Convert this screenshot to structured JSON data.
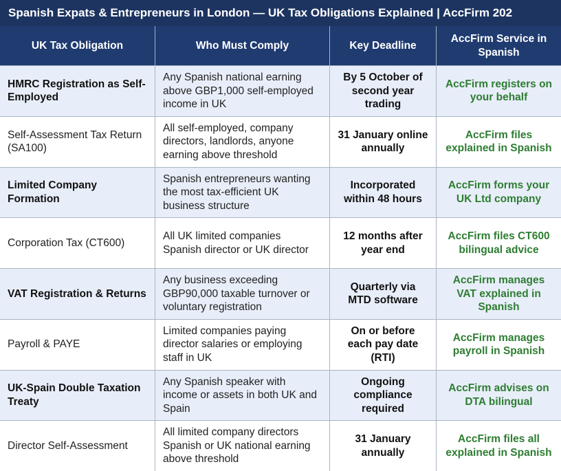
{
  "table": {
    "title": "Spanish Expats & Entrepreneurs in London — UK Tax Obligations Explained | AccFirm 202",
    "headers": [
      "UK Tax Obligation",
      "Who Must Comply",
      "Key Deadline",
      "AccFirm Service in Spanish"
    ],
    "rows": [
      [
        "HMRC Registration as Self-Employed",
        "Any Spanish national earning above GBP1,000 self-employed income in UK",
        "By 5 October of second year trading",
        "AccFirm registers on your behalf"
      ],
      [
        "Self-Assessment Tax Return (SA100)",
        "All self-employed, company directors, landlords, anyone earning above threshold",
        "31 January online annually",
        "AccFirm files explained in Spanish"
      ],
      [
        "Limited Company Formation",
        "Spanish entrepreneurs wanting the most tax-efficient UK business structure",
        "Incorporated within 48 hours",
        "AccFirm forms your UK Ltd company"
      ],
      [
        "Corporation Tax (CT600)",
        "All UK limited companies Spanish director or UK director",
        "12 months after year end",
        "AccFirm files CT600 bilingual advice"
      ],
      [
        "VAT Registration & Returns",
        "Any business exceeding GBP90,000 taxable turnover or voluntary registration",
        "Quarterly via MTD software",
        "AccFirm manages VAT explained in Spanish"
      ],
      [
        "Payroll & PAYE",
        "Limited companies paying director salaries or employing staff in UK",
        "On or before each pay date (RTI)",
        "AccFirm manages payroll in Spanish"
      ],
      [
        "UK-Spain Double Taxation Treaty",
        "Any Spanish speaker with income or assets in both UK and Spain",
        "Ongoing compliance required",
        "AccFirm advises on DTA bilingual"
      ],
      [
        "Director Self-Assessment",
        "All limited company directors Spanish or UK national earning above threshold",
        "31 January annually",
        "AccFirm files all explained in Spanish"
      ]
    ]
  }
}
